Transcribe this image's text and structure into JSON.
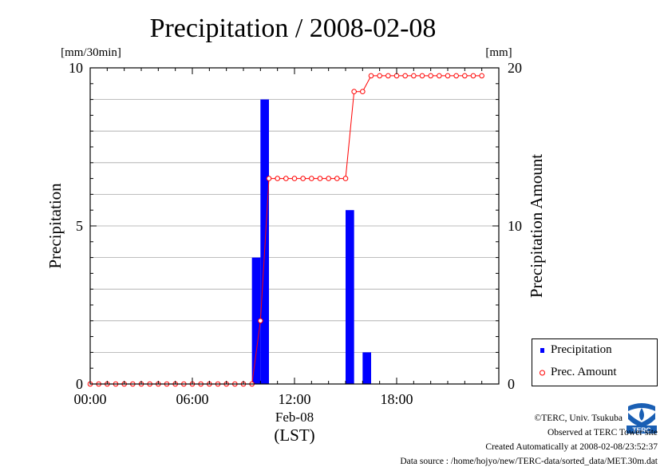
{
  "chart_data": {
    "type": "bar",
    "title": "Precipitation / 2008-02-08",
    "ylabel_left": "Precipitation",
    "ylabel_right": "Precipitation Amount",
    "unit_left": "[mm/30min]",
    "unit_right": "[mm]",
    "ylim_left": [
      0,
      10
    ],
    "ylim_right": [
      0,
      20
    ],
    "yticks_left": [
      "0",
      "5",
      "10"
    ],
    "yticks_right": [
      "0",
      "10",
      "20"
    ],
    "xlim_hours": [
      0,
      24
    ],
    "xticks": [
      "00:00",
      "06:00",
      "12:00",
      "18:00"
    ],
    "date_label": "Feb-08",
    "xlabel": "(LST)",
    "grid": true,
    "series": [
      {
        "name": "Precipitation",
        "kind": "bar",
        "color": "#0000ff",
        "x": [
          9.5,
          10.0,
          15.0,
          16.0
        ],
        "values": [
          4.0,
          9.0,
          5.5,
          1.0
        ]
      },
      {
        "name": "Prec. Amount",
        "kind": "line",
        "color": "#ff0000",
        "x": [
          0,
          0.5,
          1,
          1.5,
          2,
          2.5,
          3,
          3.5,
          4,
          4.5,
          5,
          5.5,
          6,
          6.5,
          7,
          7.5,
          8,
          8.5,
          9,
          9.5,
          10,
          10.5,
          11,
          11.5,
          12,
          12.5,
          13,
          13.5,
          14,
          14.5,
          15,
          15.5,
          16,
          16.5,
          17,
          17.5,
          18,
          18.5,
          19,
          19.5,
          20,
          20.5,
          21,
          21.5,
          22,
          22.5,
          23
        ],
        "values": [
          0,
          0,
          0,
          0,
          0,
          0,
          0,
          0,
          0,
          0,
          0,
          0,
          0,
          0,
          0,
          0,
          0,
          0,
          0,
          0,
          4,
          13,
          13,
          13,
          13,
          13,
          13,
          13,
          13,
          13,
          13,
          18.5,
          18.5,
          19.5,
          19.5,
          19.5,
          19.5,
          19.5,
          19.5,
          19.5,
          19.5,
          19.5,
          19.5,
          19.5,
          19.5,
          19.5,
          19.5
        ]
      }
    ]
  },
  "legend": {
    "items": [
      "Precipitation",
      "Prec. Amount"
    ]
  },
  "footer": {
    "copyright": "©TERC, Univ. Tsukuba",
    "site": "Observed at TERC Tower site",
    "created": "Created Automatically at 2008-02-08/23:52:37",
    "source": "Data source : /home/hojyo/new/TERC-data/sorted_data/MET.30m.dat"
  },
  "logo": {
    "text": "TERC"
  }
}
